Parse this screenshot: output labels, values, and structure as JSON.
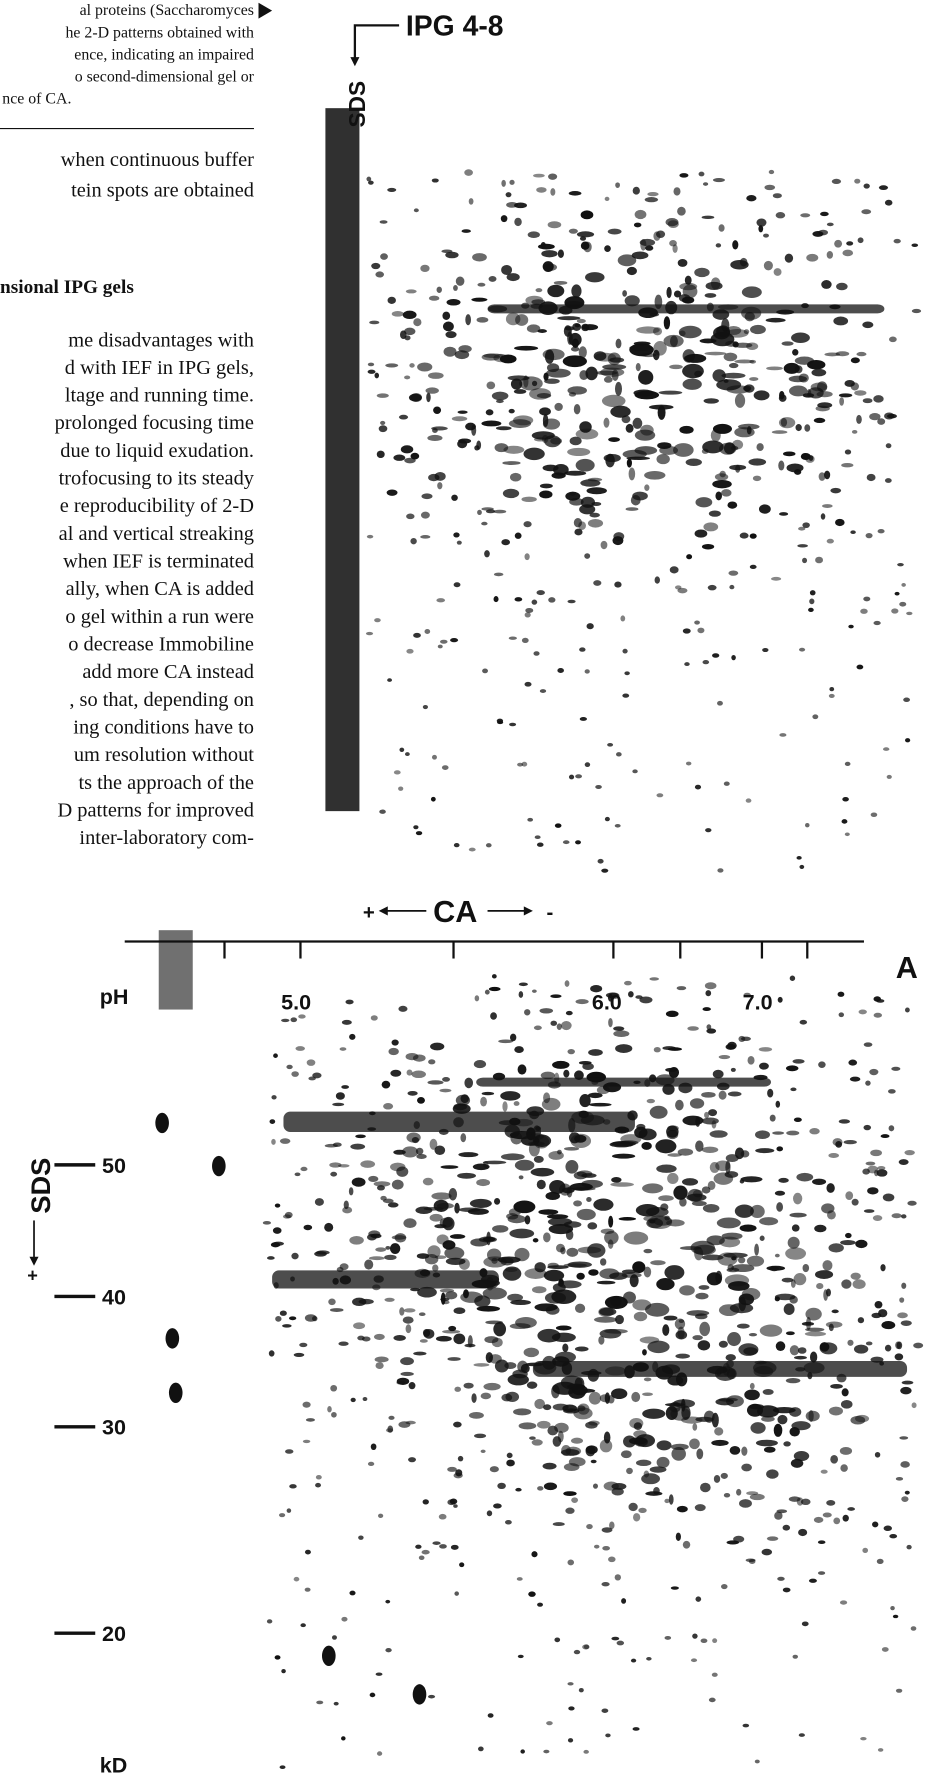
{
  "caption": [
    "al proteins (Saccharomyces",
    "he 2-D patterns obtained with",
    "ence, indicating an impaired",
    "o second-dimensional gel or",
    "nce of CA."
  ],
  "body_top": [
    "when continuous buffer",
    "tein spots are obtained"
  ],
  "heading": "nsional IPG gels",
  "body": [
    "me disadvantages with",
    "d with IEF in IPG gels,",
    "ltage and running time.",
    "prolonged focusing time",
    "due to liquid exudation.",
    "trofocusing to its steady",
    "e reproducibility of 2-D",
    "al and vertical streaking",
    "when IEF is terminated",
    "ally, when CA is added",
    "o gel within a run were",
    "o decrease Immobiline",
    "add more CA instead",
    ", so that, depending on",
    "ing conditions have to",
    "um resolution without",
    "ts the approach of the",
    "D patterns for improved",
    "inter-laboratory com-"
  ],
  "figure_top": {
    "label": "IPG 4-8",
    "sds": "SDS",
    "ca_plus": "+",
    "ca": "CA",
    "ca_minus": "-"
  },
  "figure_bottom": {
    "panel": "A",
    "ph_label": "pH",
    "ph_ticks": [
      "5.0",
      "6.0",
      "7.0"
    ],
    "sds": "SDS",
    "sds_plus": "+",
    "mw_ticks": [
      "50",
      "40",
      "30",
      "20"
    ],
    "unit": "kD"
  }
}
